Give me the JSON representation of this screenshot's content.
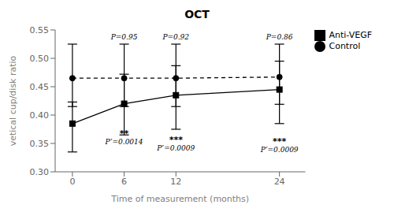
{
  "chart_data": {
    "type": "line",
    "title": "OCT",
    "xlabel": "Time of measurement (months)",
    "ylabel": "vetical cup/disk ratio",
    "x": [
      0,
      6,
      12,
      24
    ],
    "xlim": [
      -2,
      27
    ],
    "xticks": [
      0,
      6,
      12,
      24
    ],
    "ylim": [
      0.3,
      0.55
    ],
    "yticks": [
      {
        "value": 0.3,
        "label": "0.30"
      },
      0.35,
      {
        "value": 0.4,
        "label": "0.40"
      },
      0.45,
      {
        "value": 0.5,
        "label": "0.50"
      },
      0.55
    ],
    "grid": false,
    "legend": "right",
    "series": [
      {
        "name": "Control",
        "color": "#000000",
        "marker": "circle",
        "line_style": "dashed",
        "values": [
          0.465,
          0.465,
          0.465,
          0.467
        ],
        "yerr_low": [
          0.05,
          0.05,
          0.05,
          0.048
        ],
        "yerr_high": [
          0.06,
          0.06,
          0.06,
          0.058
        ]
      },
      {
        "name": "Anti-VEGF",
        "color": "#000000",
        "marker": "square",
        "line_style": "solid",
        "values": [
          0.385,
          0.42,
          0.435,
          0.445
        ],
        "yerr_low": [
          0.05,
          0.055,
          0.06,
          0.06
        ],
        "yerr_high": [
          0.038,
          0.052,
          0.052,
          0.05
        ]
      }
    ],
    "annotations": [
      {
        "text": "P=0.95",
        "x": 6,
        "y": 0.542
      },
      {
        "text": "P=0.92",
        "x": 12,
        "y": 0.542
      },
      {
        "text": "P=0.86",
        "x": 24,
        "y": 0.542
      },
      {
        "text": "**",
        "x": 6,
        "y": 0.374
      },
      {
        "text": "***",
        "x": 12,
        "y": 0.362
      },
      {
        "text": "***",
        "x": 24,
        "y": 0.36
      },
      {
        "text": "P’=0.0014",
        "x": 6,
        "y": 0.358
      },
      {
        "text": "P’=0.0009",
        "x": 12,
        "y": 0.346
      },
      {
        "text": "P’=0.0009",
        "x": 24,
        "y": 0.343
      }
    ]
  }
}
